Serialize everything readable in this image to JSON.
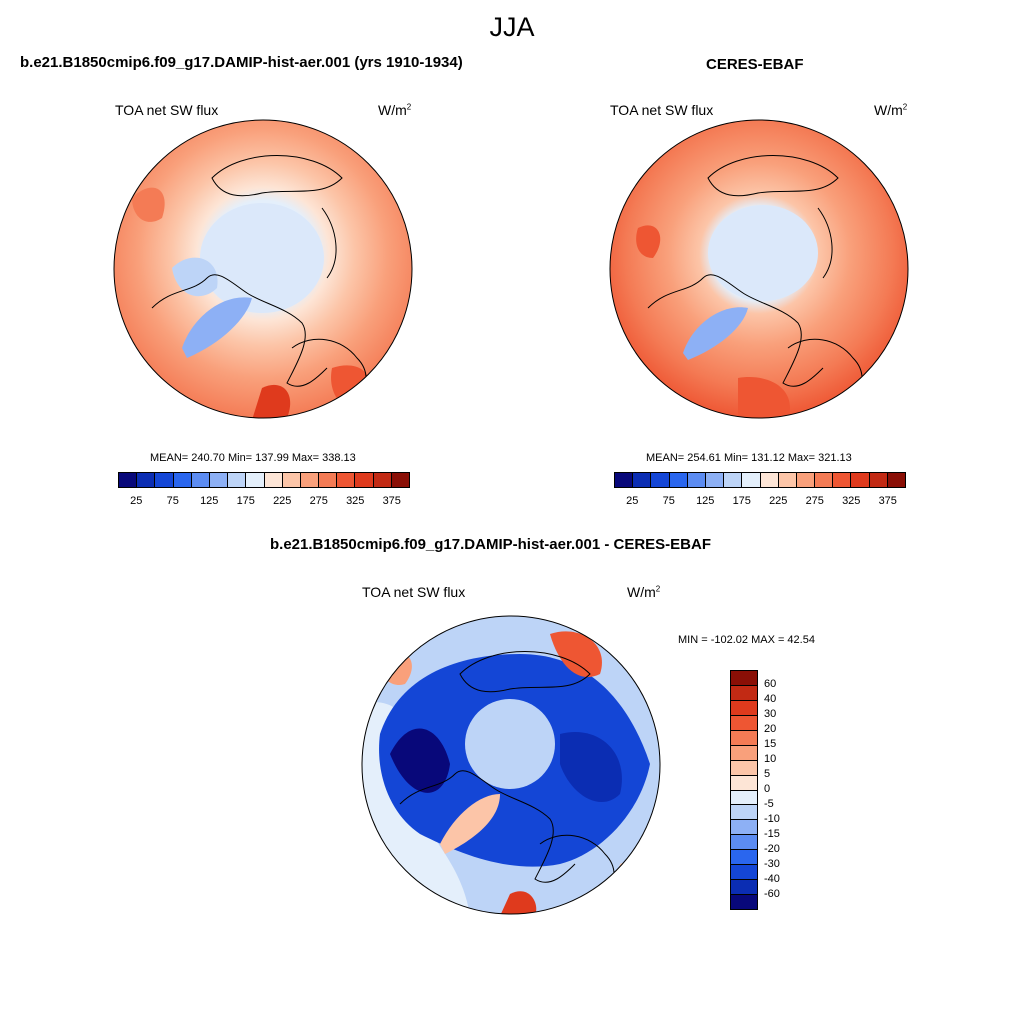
{
  "title": "JJA",
  "panels": [
    {
      "title": "b.e21.B1850cmip6.f09_g17.DAMIP-hist-aer.001 (yrs 1910-1934)",
      "left_label": "TOA net SW flux",
      "units": "W/m",
      "units_sup": "2",
      "stats": "MEAN= 240.70  Min= 137.99  Max= 338.13"
    },
    {
      "title": "CERES-EBAF",
      "left_label": "TOA net SW flux",
      "units": "W/m",
      "units_sup": "2",
      "stats": "MEAN= 254.61  Min= 131.12  Max= 321.13"
    },
    {
      "title": "b.e21.B1850cmip6.f09_g17.DAMIP-hist-aer.001 - CERES-EBAF",
      "left_label": "TOA net SW flux",
      "units": "W/m",
      "units_sup": "2",
      "stats": "MIN = -102.02 MAX =  42.54"
    }
  ],
  "colorbar_top": {
    "colors": [
      "#08087a",
      "#0b2db3",
      "#1446d6",
      "#2a66ee",
      "#5c8cf2",
      "#8db0f5",
      "#bdd4f7",
      "#e4effb",
      "#fde5d6",
      "#fcc5a8",
      "#f9a07b",
      "#f47b55",
      "#ee5633",
      "#df3a1d",
      "#c22a14",
      "#8a0f06"
    ],
    "tick_labels": [
      "25",
      "75",
      "125",
      "175",
      "225",
      "275",
      "325",
      "375"
    ]
  },
  "colorbar_diff": {
    "colors": [
      "#8a0f06",
      "#c22a14",
      "#df3a1d",
      "#ee5633",
      "#f47b55",
      "#f9a07b",
      "#fcc5a8",
      "#fde5d6",
      "#e4effb",
      "#bdd4f7",
      "#8db0f5",
      "#5c8cf2",
      "#2a66ee",
      "#1446d6",
      "#0b2db3",
      "#08087a"
    ],
    "tick_labels": [
      "60",
      "40",
      "30",
      "20",
      "15",
      "10",
      "5",
      "0",
      "-5",
      "-10",
      "-15",
      "-20",
      "-30",
      "-40",
      "-60"
    ]
  }
}
